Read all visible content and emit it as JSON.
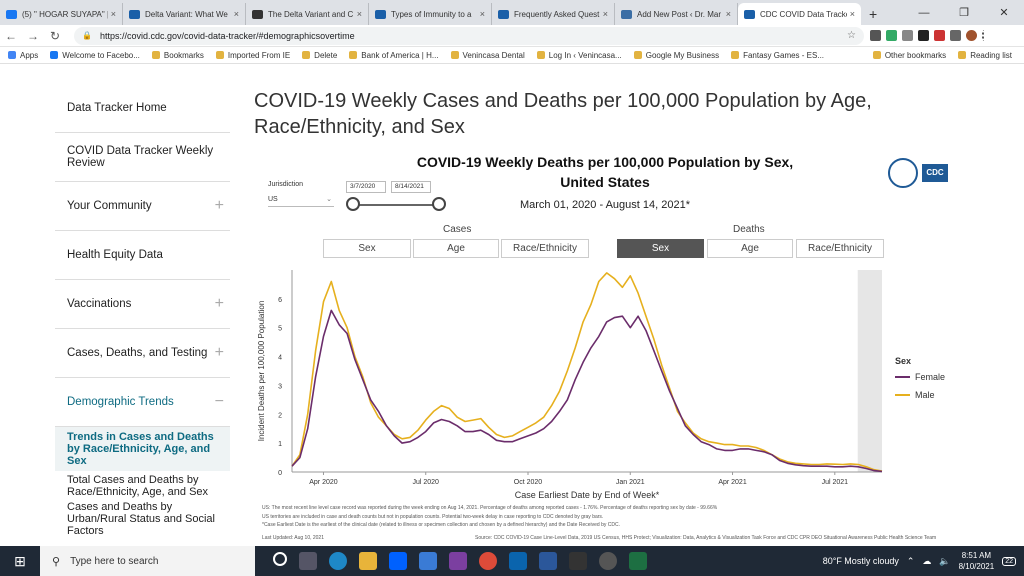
{
  "browser": {
    "tabs": [
      {
        "title": "(5) \" HOGAR SUYAPA\" |",
        "fav": "facebook",
        "color": "#1877f2"
      },
      {
        "title": "Delta Variant: What We",
        "fav": "cdc",
        "color": "#1a5fa8"
      },
      {
        "title": "The Delta Variant and C",
        "fav": "wsj",
        "color": "#333333"
      },
      {
        "title": "Types of Immunity to a",
        "fav": "cdc",
        "color": "#1a5fa8"
      },
      {
        "title": "Frequently Asked Quest",
        "fav": "cdc",
        "color": "#1a5fa8"
      },
      {
        "title": "Add New Post ‹ Dr. Mar",
        "fav": "wordpress",
        "color": "#3b6ea5"
      },
      {
        "title": "CDC COVID Data Tracker",
        "fav": "cdc",
        "color": "#1a5fa8",
        "active": true
      }
    ],
    "url": "https://covid.cdc.gov/covid-data-tracker/#demographicsovertime",
    "bookmarks": [
      "Apps",
      "Welcome to Facebo...",
      "Bookmarks",
      "Imported From IE",
      "Delete",
      "Bank of America | H...",
      "Venincasa Dental",
      "Log In ‹ Venincasa...",
      "Google My Business",
      "Fantasy Games - ES...",
      "Other bookmarks",
      "Reading list"
    ]
  },
  "sidebar": {
    "items": [
      {
        "label": "Data Tracker Home",
        "plus": false
      },
      {
        "label": "COVID Data Tracker Weekly Review",
        "plus": false
      },
      {
        "label": "Your Community",
        "plus": true
      },
      {
        "label": "Health Equity Data",
        "plus": false
      },
      {
        "label": "Vaccinations",
        "plus": true
      },
      {
        "label": "Cases, Deaths, and Testing",
        "plus": true
      },
      {
        "label": "Demographic Trends",
        "plus": "minus"
      }
    ],
    "selected": "Trends in Cases and Deaths by Race/Ethnicity, Age, and Sex",
    "subs": [
      "Total Cases and Deaths by Race/Ethnicity, Age, and Sex",
      "Cases and Deaths by Urban/Rural Status and Social Factors"
    ]
  },
  "page": {
    "title": "COVID-19 Weekly Cases and Deaths per 100,000 Population by Age, Race/Ethnicity, and Sex"
  },
  "controls": {
    "jurisdiction_label": "Jurisdiction",
    "jurisdiction_value": "US",
    "date_start": "3/7/2020",
    "date_end": "8/14/2021",
    "cases_label": "Cases",
    "deaths_label": "Deaths",
    "cases_buttons": [
      "Sex",
      "Age",
      "Race/Ethnicity"
    ],
    "deaths_buttons": [
      "Sex",
      "Age",
      "Race/Ethnicity"
    ],
    "active": "deaths-sex"
  },
  "chart_data": {
    "type": "line",
    "title": "COVID-19 Weekly Deaths per 100,000 Population by Sex, United States",
    "subtitle": "March 01, 2020 - August 14, 2021*",
    "xlabel": "Case Earliest Date by End of Week*",
    "ylabel": "Incident Deaths per 100,000 Population",
    "ylim": [
      0,
      7
    ],
    "yticks": [
      0,
      1,
      2,
      3,
      4,
      5,
      6
    ],
    "xticks": [
      {
        "label": "Apr 2020",
        "x": 4
      },
      {
        "label": "Jul 2020",
        "x": 17
      },
      {
        "label": "Oct 2020",
        "x": 30
      },
      {
        "label": "Jan 2021",
        "x": 43
      },
      {
        "label": "Apr 2021",
        "x": 56
      },
      {
        "label": "Jul 2021",
        "x": 69
      }
    ],
    "x": [
      0,
      1,
      2,
      3,
      4,
      5,
      6,
      7,
      8,
      9,
      10,
      11,
      12,
      13,
      14,
      15,
      16,
      17,
      18,
      19,
      20,
      21,
      22,
      23,
      24,
      25,
      26,
      27,
      28,
      29,
      30,
      31,
      32,
      33,
      34,
      35,
      36,
      37,
      38,
      39,
      40,
      41,
      42,
      43,
      44,
      45,
      46,
      47,
      48,
      49,
      50,
      51,
      52,
      53,
      54,
      55,
      56,
      57,
      58,
      59,
      60,
      61,
      62,
      63,
      64,
      65,
      66,
      67,
      68,
      69,
      70,
      71,
      72,
      73,
      74,
      75
    ],
    "series": [
      {
        "name": "Female",
        "color": "#6b2d6b",
        "values": [
          0.2,
          0.5,
          1.5,
          3.3,
          4.7,
          5.6,
          5.1,
          4.8,
          3.9,
          3.2,
          2.5,
          2.1,
          1.6,
          1.25,
          1.0,
          1.05,
          1.2,
          1.4,
          1.7,
          1.82,
          1.75,
          1.6,
          1.4,
          1.4,
          1.45,
          1.3,
          1.1,
          1.05,
          1.05,
          1.15,
          1.25,
          1.35,
          1.5,
          1.75,
          2.1,
          2.5,
          3.2,
          3.8,
          4.3,
          4.7,
          5.2,
          5.35,
          5.4,
          5.0,
          5.4,
          4.9,
          4.2,
          3.5,
          2.8,
          2.2,
          1.6,
          1.3,
          1.05,
          0.95,
          0.8,
          0.75,
          0.75,
          0.8,
          0.8,
          0.75,
          0.7,
          0.6,
          0.4,
          0.3,
          0.25,
          0.22,
          0.2,
          0.2,
          0.2,
          0.18,
          0.18,
          0.2,
          0.18,
          0.12,
          0.05,
          0.02
        ]
      },
      {
        "name": "Male",
        "color": "#e6b01e",
        "values": [
          0.2,
          0.6,
          2.0,
          4.2,
          5.9,
          6.6,
          5.6,
          5.0,
          4.0,
          3.3,
          2.4,
          1.9,
          1.6,
          1.3,
          1.15,
          1.2,
          1.45,
          1.8,
          2.1,
          2.3,
          2.2,
          1.9,
          1.75,
          1.8,
          1.85,
          1.55,
          1.3,
          1.2,
          1.25,
          1.4,
          1.55,
          1.7,
          1.9,
          2.3,
          2.8,
          3.5,
          4.3,
          5.2,
          5.8,
          6.6,
          6.9,
          6.7,
          6.4,
          6.8,
          6.2,
          5.4,
          4.6,
          3.7,
          2.9,
          2.1,
          1.7,
          1.35,
          1.15,
          1.05,
          1.0,
          0.95,
          0.95,
          0.9,
          0.9,
          0.85,
          0.75,
          0.6,
          0.45,
          0.35,
          0.3,
          0.28,
          0.26,
          0.26,
          0.28,
          0.27,
          0.26,
          0.28,
          0.26,
          0.18,
          0.08,
          0.03
        ]
      }
    ],
    "legend": {
      "title": "Sex",
      "position": "right"
    },
    "footnotes": [
      "US: The most recent line level case record was reported during the week ending on Aug 14, 2021. Percentage of deaths among reported cases - 1.76%. Percentage of deaths reporting sex by date - 99.66%",
      "US territories are included in case and death counts but not in population counts. Potential two-week delay in case reporting to CDC denoted by gray bars.",
      "*Case Earliest Date is the earliest of the clinical date (related to illness or specimen collection and chosen by a defined hierarchy) and the Date Received by CDC."
    ],
    "last_updated": "Last Updated: Aug 10, 2021",
    "source": "Source: CDC COVID-19 Case Line-Level Data, 2019 US Census, HHS Protect; Visualization: Data, Analytics & Visualization Task Force and CDC CPR DEO Situational Awareness Public Health Science Team"
  },
  "taskbar": {
    "search_placeholder": "Type here to search",
    "weather": "80°F  Mostly cloudy",
    "time": "8:51 AM",
    "date": "8/10/2021",
    "badge": "22"
  }
}
